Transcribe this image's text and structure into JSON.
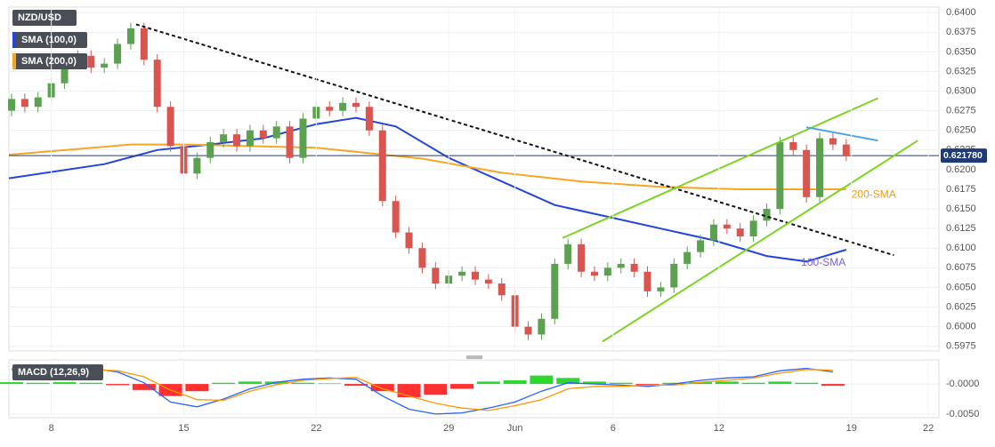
{
  "chart_data": [
    {
      "type": "candlestick",
      "title": "NZD/USD",
      "xlim": [
        -1.6,
        33.5
      ],
      "ylim": [
        0.5969,
        0.6407
      ],
      "yticks": [
        {
          "value": 0.5975,
          "label": "0.5975"
        },
        {
          "value": 0.6,
          "label": "0.6000"
        },
        {
          "value": 0.6025,
          "label": "0.6025"
        },
        {
          "value": 0.605,
          "label": "0.6050"
        },
        {
          "value": 0.6075,
          "label": "0.6075"
        },
        {
          "value": 0.61,
          "label": "0.6100"
        },
        {
          "value": 0.6125,
          "label": "0.6125"
        },
        {
          "value": 0.615,
          "label": "0.6150"
        },
        {
          "value": 0.6175,
          "label": "0.6175"
        },
        {
          "value": 0.62,
          "label": "0.6200"
        },
        {
          "value": 0.6225,
          "label": "0.6225"
        },
        {
          "value": 0.625,
          "label": "0.6250"
        },
        {
          "value": 0.6275,
          "label": "0.6275"
        },
        {
          "value": 0.63,
          "label": "0.6300"
        },
        {
          "value": 0.6325,
          "label": "0.6325"
        },
        {
          "value": 0.635,
          "label": "0.6350"
        },
        {
          "value": 0.6375,
          "label": "0.6375"
        },
        {
          "value": 0.64,
          "label": "0.6400"
        }
      ],
      "grid": true,
      "up_color": "#5ba14f",
      "down_color": "#d95550",
      "x": [
        -1.5,
        -1,
        -0.5,
        0,
        0.5,
        1,
        1.5,
        2,
        2.5,
        3,
        3.5,
        4,
        4.5,
        5,
        5.5,
        6,
        6.5,
        7,
        7.5,
        8,
        8.5,
        9,
        9.5,
        10,
        10.5,
        11,
        11.5,
        12,
        12.5,
        13,
        13.5,
        14,
        14.5,
        15,
        15.5,
        16,
        16.5,
        17,
        17.5,
        18,
        18.5,
        19,
        19.5,
        20,
        20.5,
        21,
        21.5,
        22,
        22.5,
        23,
        23.5,
        24,
        24.5,
        25,
        25.5,
        26,
        26.5,
        27,
        27.5,
        28,
        28.5,
        29,
        29.5,
        30
      ],
      "open": [
        0.6275,
        0.629,
        0.628,
        0.6292,
        0.631,
        0.6335,
        0.6345,
        0.633,
        0.6335,
        0.636,
        0.638,
        0.634,
        0.628,
        0.623,
        0.6195,
        0.6215,
        0.6235,
        0.6245,
        0.623,
        0.625,
        0.624,
        0.6255,
        0.6215,
        0.6265,
        0.628,
        0.6275,
        0.6285,
        0.628,
        0.625,
        0.616,
        0.612,
        0.61,
        0.6075,
        0.6055,
        0.6065,
        0.607,
        0.606,
        0.6055,
        0.604,
        0.6,
        0.599,
        0.601,
        0.608,
        0.6105,
        0.607,
        0.6065,
        0.6075,
        0.608,
        0.607,
        0.6045,
        0.605,
        0.608,
        0.6095,
        0.611,
        0.613,
        0.6125,
        0.6115,
        0.6135,
        0.615,
        0.6235,
        0.6225,
        0.6165,
        0.624,
        0.6232
      ],
      "high": [
        0.6297,
        0.6297,
        0.6299,
        0.6317,
        0.6342,
        0.6352,
        0.6352,
        0.6342,
        0.6367,
        0.6387,
        0.6387,
        0.6347,
        0.6287,
        0.6237,
        0.6222,
        0.6242,
        0.6252,
        0.6252,
        0.6257,
        0.6257,
        0.6262,
        0.6262,
        0.6272,
        0.6287,
        0.6287,
        0.6292,
        0.6292,
        0.6287,
        0.6257,
        0.6167,
        0.6127,
        0.6107,
        0.6082,
        0.6072,
        0.6077,
        0.6077,
        0.6067,
        0.6062,
        0.6047,
        0.6007,
        0.6017,
        0.6087,
        0.6112,
        0.6112,
        0.6077,
        0.6082,
        0.6087,
        0.6087,
        0.6077,
        0.6057,
        0.6087,
        0.6102,
        0.6117,
        0.6137,
        0.6137,
        0.6132,
        0.6142,
        0.6157,
        0.6242,
        0.6242,
        0.6232,
        0.6247,
        0.6247,
        0.6239
      ],
      "low": [
        0.6268,
        0.6273,
        0.6273,
        0.6285,
        0.6303,
        0.6328,
        0.6323,
        0.6323,
        0.6328,
        0.6353,
        0.6333,
        0.6273,
        0.6223,
        0.6188,
        0.6188,
        0.6208,
        0.6228,
        0.6223,
        0.6223,
        0.6233,
        0.6233,
        0.6208,
        0.6208,
        0.6258,
        0.6268,
        0.6268,
        0.6273,
        0.6243,
        0.6153,
        0.6113,
        0.6093,
        0.6068,
        0.6048,
        0.6048,
        0.6058,
        0.6053,
        0.6048,
        0.6033,
        0.5993,
        0.5983,
        0.5983,
        0.6003,
        0.6073,
        0.6063,
        0.6058,
        0.6058,
        0.6068,
        0.6063,
        0.6038,
        0.6038,
        0.6043,
        0.6073,
        0.6088,
        0.6103,
        0.6118,
        0.6108,
        0.6108,
        0.6128,
        0.6143,
        0.6218,
        0.6158,
        0.6158,
        0.6225,
        0.6211
      ],
      "close": [
        0.629,
        0.628,
        0.6292,
        0.631,
        0.6335,
        0.6345,
        0.633,
        0.6335,
        0.636,
        0.638,
        0.634,
        0.628,
        0.623,
        0.6195,
        0.6215,
        0.6235,
        0.6245,
        0.623,
        0.625,
        0.624,
        0.6255,
        0.6215,
        0.6265,
        0.628,
        0.6275,
        0.6285,
        0.628,
        0.625,
        0.616,
        0.612,
        0.61,
        0.6075,
        0.6055,
        0.6065,
        0.607,
        0.606,
        0.6055,
        0.604,
        0.6,
        0.599,
        0.601,
        0.608,
        0.6105,
        0.607,
        0.6065,
        0.6075,
        0.608,
        0.607,
        0.6045,
        0.605,
        0.608,
        0.6095,
        0.611,
        0.613,
        0.6125,
        0.6115,
        0.6135,
        0.615,
        0.6235,
        0.6225,
        0.6165,
        0.624,
        0.6232,
        0.6218
      ],
      "series": [
        {
          "name": "SMA (100,0)",
          "color": "#2446d8",
          "x": [
            -1.6,
            2,
            4,
            6,
            8,
            10,
            11.5,
            13,
            15,
            17,
            19,
            21,
            23,
            25,
            27,
            28.5,
            30
          ],
          "values": [
            0.6189,
            0.6207,
            0.6225,
            0.6232,
            0.624,
            0.6258,
            0.6266,
            0.6255,
            0.6215,
            0.6185,
            0.6155,
            0.614,
            0.6125,
            0.611,
            0.609,
            0.6083,
            0.6098
          ]
        },
        {
          "name": "SMA (200,0)",
          "color": "#f5a623",
          "x": [
            -1.6,
            3,
            5,
            10,
            14,
            17,
            20,
            23,
            26,
            30
          ],
          "values": [
            0.6219,
            0.6232,
            0.6232,
            0.6228,
            0.6214,
            0.6196,
            0.6185,
            0.6178,
            0.6175,
            0.6175
          ]
        }
      ],
      "price": {
        "value": 0.62178,
        "label": "0.621780",
        "color": "#1f3b73"
      },
      "trendlines": [
        {
          "x": [
            3.2,
            31.8
          ],
          "y": [
            0.6385,
            0.6091
          ],
          "color": "#111111",
          "dashed": true
        },
        {
          "x": [
            19.3,
            31.2
          ],
          "y": [
            0.6113,
            0.6291
          ],
          "color": "#7ed321",
          "dashed": false
        },
        {
          "x": [
            20.8,
            32.7
          ],
          "y": [
            0.5981,
            0.6237
          ],
          "color": "#7ed321",
          "dashed": false
        },
        {
          "x": [
            28.5,
            31.2
          ],
          "y": [
            0.6254,
            0.6237
          ],
          "color": "#4aa3df",
          "dashed": false
        }
      ],
      "annotations": [
        {
          "text": "200-SMA",
          "x": 30.2,
          "y": 0.6168,
          "color": "#f39c12"
        },
        {
          "text": "100-SMA",
          "x": 28.3,
          "y": 0.6081,
          "color": "#7b5fd6"
        }
      ]
    },
    {
      "type": "macd",
      "title": "MACD (12,26,9)",
      "xlim": [
        -1.6,
        33.5
      ],
      "ylim": [
        -0.0056,
        0.004
      ],
      "yticks": [
        {
          "value": 0,
          "label": "-0.0000"
        },
        {
          "value": -0.005,
          "label": "-0.0050"
        }
      ],
      "xticks": [
        {
          "value": 0,
          "label": "8"
        },
        {
          "value": 5,
          "label": "15"
        },
        {
          "value": 10,
          "label": "22"
        },
        {
          "value": 15,
          "label": "29"
        },
        {
          "value": 17.5,
          "label": "Jun"
        },
        {
          "value": 21.2,
          "label": "6"
        },
        {
          "value": 25.2,
          "label": "12"
        },
        {
          "value": 30.2,
          "label": "19"
        },
        {
          "value": 33.1,
          "label": "22"
        }
      ],
      "grid": true,
      "up_color": "#19d119",
      "down_color": "#ff1a1a",
      "x": [
        -1.5,
        -0.5,
        0.5,
        1.5,
        2.5,
        3.5,
        4.5,
        5.5,
        6.5,
        7.5,
        8.5,
        9.5,
        10.5,
        11.5,
        12.5,
        13.5,
        14.5,
        15.5,
        16.5,
        17.5,
        18.5,
        19.5,
        20.5,
        21.5,
        22.5,
        23.5,
        24.5,
        25.5,
        26.5,
        27.5,
        28.5,
        29.5
      ],
      "histogram": [
        0.0003,
        0.0002,
        0.0003,
        0.0002,
        -0.0002,
        -0.001,
        -0.002,
        -0.0012,
        0.0002,
        0.0004,
        0.0004,
        0.0002,
        0.0001,
        -0.0003,
        -0.0012,
        -0.0022,
        -0.0018,
        -0.0008,
        0.0004,
        0.0006,
        0.0014,
        0.001,
        0.0004,
        0.0002,
        -0.0002,
        0.0002,
        0.0003,
        0.0004,
        0.0002,
        0.0004,
        0.0002,
        -0.0003
      ],
      "series": [
        {
          "color": "#2962ff",
          "values": [
            0.0025,
            0.0022,
            0.0024,
            0.0026,
            0.002,
            0.0002,
            -0.003,
            -0.0038,
            -0.0025,
            -0.0008,
            0.0003,
            0.0008,
            0.001,
            0.0008,
            -0.002,
            -0.0042,
            -0.005,
            -0.0048,
            -0.004,
            -0.003,
            -0.0012,
            0.0002,
            0,
            -0.0002,
            -0.0004,
            0,
            0.0006,
            0.001,
            0.0012,
            0.0022,
            0.0026,
            0.002
          ]
        },
        {
          "color": "#ff9800",
          "values": [
            0.0022,
            0.002,
            0.0021,
            0.0024,
            0.0022,
            0.0012,
            -0.001,
            -0.0026,
            -0.0027,
            -0.0012,
            -0.0001,
            0.0006,
            0.0009,
            0.0011,
            -0.0008,
            -0.002,
            -0.0032,
            -0.004,
            -0.0044,
            -0.0036,
            -0.0026,
            -0.0008,
            -0.0004,
            -0.0004,
            -0.0002,
            -0.0002,
            0.0003,
            0.0006,
            0.001,
            0.0018,
            0.0024,
            0.0023
          ]
        }
      ]
    }
  ]
}
